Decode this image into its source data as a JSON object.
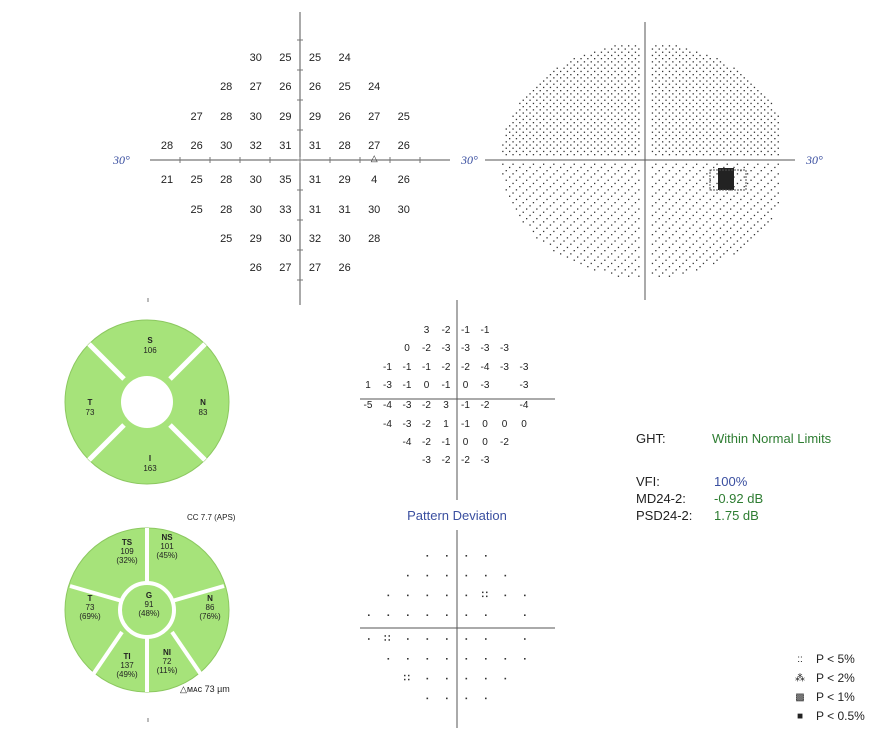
{
  "threshold_map": {
    "axis_label_left": "30°",
    "rows": [
      [
        "",
        "",
        "",
        "30",
        "25",
        "25",
        "24",
        "",
        "",
        ""
      ],
      [
        "",
        "",
        "28",
        "27",
        "26",
        "26",
        "25",
        "24",
        "",
        ""
      ],
      [
        "",
        "27",
        "28",
        "30",
        "29",
        "29",
        "26",
        "27",
        "25",
        ""
      ],
      [
        "28",
        "26",
        "30",
        "32",
        "31",
        "31",
        "28",
        "27",
        "26",
        ""
      ],
      [
        "21",
        "25",
        "28",
        "30",
        "35",
        "31",
        "29",
        "4",
        "26",
        ""
      ],
      [
        "",
        "25",
        "28",
        "30",
        "33",
        "31",
        "31",
        "30",
        "30",
        ""
      ],
      [
        "",
        "",
        "25",
        "29",
        "30",
        "32",
        "30",
        "28",
        "",
        ""
      ],
      [
        "",
        "",
        "",
        "26",
        "27",
        "27",
        "26",
        "",
        "",
        ""
      ]
    ],
    "fixation_marker": "△"
  },
  "grayscale_map": {
    "axis_label_left": "30°",
    "axis_label_right": "30°"
  },
  "oct_top": {
    "superior": {
      "label": "S",
      "value": "106"
    },
    "temporal": {
      "label": "T",
      "value": "73"
    },
    "nasal": {
      "label": "N",
      "value": "83"
    },
    "inferior": {
      "label": "I",
      "value": "163"
    },
    "color": "#a6e37a"
  },
  "oct_bottom": {
    "caption": "CC 7.7 (APS)",
    "ts": {
      "label": "TS",
      "value": "109",
      "pct": "(32%)"
    },
    "ns": {
      "label": "NS",
      "value": "101",
      "pct": "(45%)"
    },
    "t": {
      "label": "T",
      "value": "73",
      "pct": "(69%)"
    },
    "g": {
      "label": "G",
      "value": "91",
      "pct": "(48%)"
    },
    "n": {
      "label": "N",
      "value": "86",
      "pct": "(76%)"
    },
    "ti": {
      "label": "TI",
      "value": "137",
      "pct": "(49%)"
    },
    "ni": {
      "label": "NI",
      "value": "72",
      "pct": "(11%)"
    },
    "footer": "△ᴍᴀᴄ 73 µm"
  },
  "pattern_deviation_values": {
    "rows": [
      [
        "",
        "",
        "",
        "3",
        "-2",
        "-1",
        "-1",
        "",
        "",
        ""
      ],
      [
        "",
        "",
        "0",
        "-2",
        "-3",
        "-3",
        "-3",
        "-3",
        "",
        ""
      ],
      [
        "",
        "-1",
        "-1",
        "-1",
        "-2",
        "-2",
        "-4",
        "-3",
        "-3",
        ""
      ],
      [
        "1",
        "-3",
        "-1",
        "0",
        "-1",
        "0",
        "-3",
        "",
        "-3",
        ""
      ],
      [
        "-5",
        "-4",
        "-3",
        "-2",
        "3",
        "-1",
        "-2",
        "",
        "-4",
        ""
      ],
      [
        "",
        "-4",
        "-3",
        "-2",
        "1",
        "-1",
        "0",
        "0",
        "0",
        ""
      ],
      [
        "",
        "",
        "-4",
        "-2",
        "-1",
        "0",
        "0",
        "-2",
        "",
        ""
      ],
      [
        "",
        "",
        "",
        "-3",
        "-2",
        "-2",
        "-3",
        "",
        "",
        ""
      ]
    ]
  },
  "pattern_deviation_title": "Pattern Deviation",
  "summary": {
    "ght_label": "GHT:",
    "ght_value": "Within Normal Limits",
    "vfi_label": "VFI:",
    "vfi_value": "100%",
    "md_label": "MD24-2:",
    "md_value": "-0.92 dB",
    "psd_label": "PSD24-2:",
    "psd_value": "1.75 dB",
    "colors": {
      "ght": "#2e7d32",
      "vfi": "#3a4fa0",
      "md": "#2e7d32",
      "psd": "#2e7d32"
    }
  },
  "legend": [
    {
      "symbol": "::",
      "label": "P < 5%"
    },
    {
      "symbol": "⁂",
      "label": "P < 2%"
    },
    {
      "symbol": "▩",
      "label": "P < 1%"
    },
    {
      "symbol": "■",
      "label": "P < 0.5%"
    }
  ]
}
